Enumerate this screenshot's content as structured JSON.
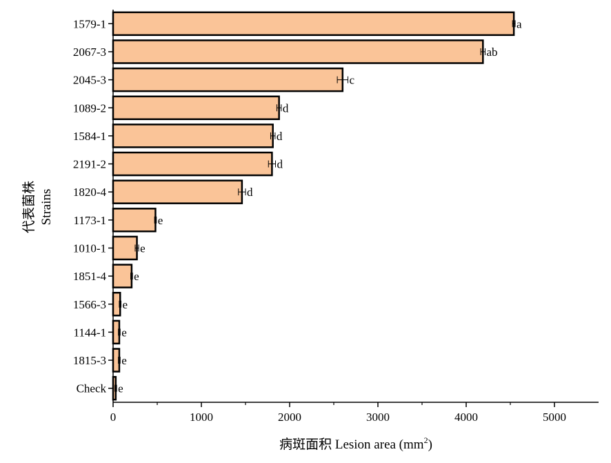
{
  "chart_data": {
    "type": "bar",
    "orientation": "horizontal",
    "categories": [
      "1579-1",
      "2067-3",
      "2045-3",
      "1089-2",
      "1584-1",
      "2191-2",
      "1820-4",
      "1173-1",
      "1010-1",
      "1851-4",
      "1566-3",
      "1144-1",
      "1815-3",
      "Check"
    ],
    "values": [
      4540,
      4190,
      2600,
      1880,
      1810,
      1800,
      1460,
      480,
      270,
      210,
      80,
      70,
      70,
      30
    ],
    "errors": [
      15,
      25,
      60,
      25,
      25,
      40,
      40,
      10,
      20,
      10,
      10,
      10,
      10,
      10
    ],
    "significance": [
      "a",
      "ab",
      "c",
      "d",
      "d",
      "d",
      "d",
      "e",
      "e",
      "e",
      "e",
      "e",
      "e",
      "e"
    ],
    "xlabel_main": "病斑面积  Lesion area (mm",
    "xlabel_sup": "2",
    "xlabel_close": ")",
    "ylabel_line1": "代表菌株",
    "ylabel_line2": "Strains",
    "xlim": [
      0,
      5500
    ],
    "xticks": [
      0,
      1000,
      2000,
      3000,
      4000,
      5000
    ],
    "bar_color": "#fac498",
    "bar_edge_color": "#000000",
    "grid": false
  }
}
